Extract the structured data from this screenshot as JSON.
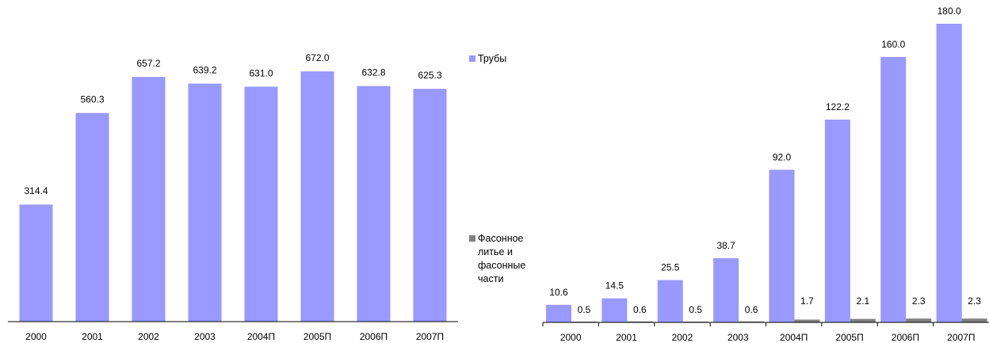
{
  "colors": {
    "series_a": "#9999ff",
    "series_b": "#808080",
    "axis": "#000000"
  },
  "chart_data": [
    {
      "type": "bar",
      "categories": [
        "2000",
        "2001",
        "2002",
        "2003",
        "2004П",
        "2005П",
        "2006П",
        "2007П"
      ],
      "series": [
        {
          "name": "Трубы",
          "values": [
            314.4,
            560.3,
            657.2,
            639.2,
            631.0,
            672.0,
            632.8,
            625.3
          ]
        }
      ],
      "value_labels": [
        "314.4",
        "560.3",
        "657.2",
        "639.2",
        "631.0",
        "672.0",
        "632.8",
        "625.3"
      ],
      "ylim": [
        0,
        800
      ],
      "grid": false
    },
    {
      "type": "bar",
      "categories": [
        "2000",
        "2001",
        "2002",
        "2003",
        "2004П",
        "2005П",
        "2006П",
        "2007П"
      ],
      "series": [
        {
          "name": "Трубы",
          "values": [
            10.6,
            14.5,
            25.5,
            38.7,
            92.0,
            122.2,
            160.0,
            180.0
          ],
          "labels": [
            "10.6",
            "14.5",
            "25.5",
            "38.7",
            "92.0",
            "122.2",
            "160.0",
            "180.0"
          ]
        },
        {
          "name": "Фасонное литье и фасонные части",
          "values": [
            0.5,
            0.6,
            0.5,
            0.6,
            1.7,
            2.1,
            2.3,
            2.3
          ],
          "labels": [
            "0.5",
            "0.6",
            "0.5",
            "0.6",
            "1.7",
            "2.1",
            "2.3",
            "2.3"
          ]
        }
      ],
      "ylim": [
        0,
        180
      ],
      "grid": false
    }
  ],
  "legend": {
    "items": [
      {
        "label": "Трубы",
        "color": "#9999ff"
      },
      {
        "label": "Фасонное литье и фасонные части",
        "color": "#808080"
      }
    ]
  }
}
